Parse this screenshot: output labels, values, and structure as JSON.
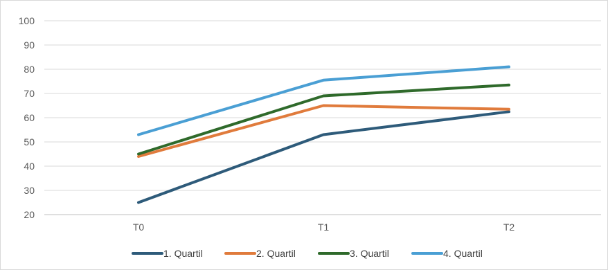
{
  "chart_data": {
    "type": "line",
    "categories": [
      "T0",
      "T1",
      "T2"
    ],
    "ylim": [
      20,
      100
    ],
    "yticks": [
      20,
      30,
      40,
      50,
      60,
      70,
      80,
      90,
      100
    ],
    "grid": true,
    "legend_position": "bottom",
    "series": [
      {
        "name": "1. Quartil",
        "color": "#2e5b7a",
        "values": [
          25,
          53,
          62.5
        ]
      },
      {
        "name": "2. Quartil",
        "color": "#e07b3c",
        "values": [
          44,
          65,
          63.5
        ]
      },
      {
        "name": "3. Quartil",
        "color": "#2f6a2b",
        "values": [
          45,
          69,
          73.5
        ]
      },
      {
        "name": "4. Quartil",
        "color": "#4a9fd4",
        "values": [
          53,
          75.5,
          81
        ]
      }
    ]
  }
}
